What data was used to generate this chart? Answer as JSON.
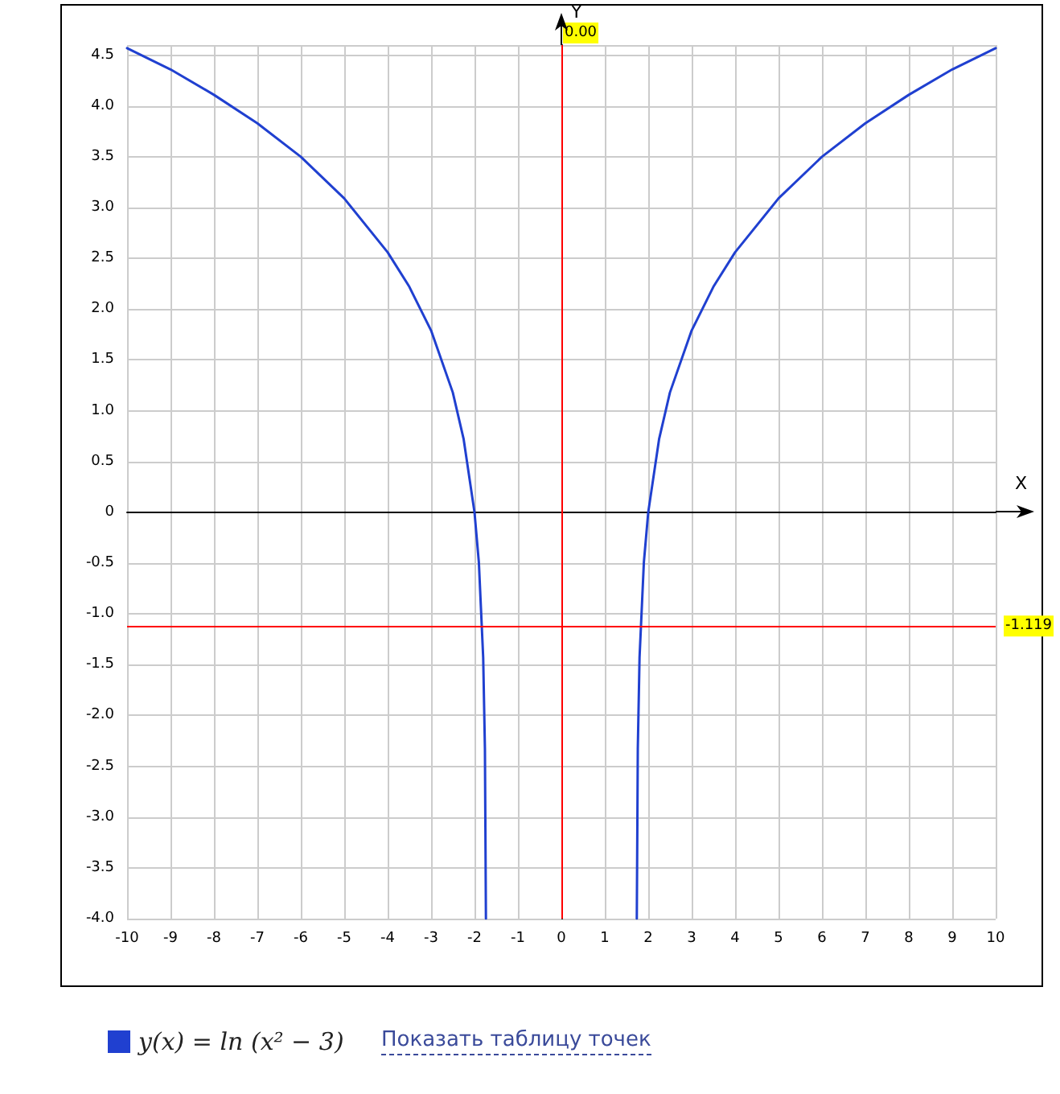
{
  "chart_data": {
    "type": "line",
    "xlabel": "X",
    "ylabel": "Y",
    "xlim": [
      -10,
      10
    ],
    "xticks": [
      -10,
      -9,
      -8,
      -7,
      -6,
      -5,
      -4,
      -3,
      -2,
      -1,
      0,
      1,
      2,
      3,
      4,
      5,
      6,
      7,
      8,
      9,
      10
    ],
    "ylim": [
      -4,
      4.6
    ],
    "yticks": [
      {
        "value": -4,
        "label": "-4.0"
      },
      -3.5,
      {
        "value": -3,
        "label": "-3.0"
      },
      -2.5,
      {
        "value": -2,
        "label": "-2.0"
      },
      -1.5,
      {
        "value": -1,
        "label": "-1.0"
      },
      -0.5,
      0,
      0.5,
      {
        "value": 1,
        "label": "1.0"
      },
      1.5,
      {
        "value": 2,
        "label": "2.0"
      },
      2.5,
      {
        "value": 3,
        "label": "3.0"
      },
      3.5,
      {
        "value": 4,
        "label": "4.0"
      },
      4.5
    ],
    "grid": true,
    "legend": "bottom left",
    "marker": "none",
    "series": [
      {
        "name": "y(x) = ln (x² − 3)",
        "color": "#2040d0",
        "x": [
          -10,
          -9,
          -8,
          -7,
          -6,
          -5,
          -4,
          -3.5,
          -3,
          -2.5,
          -2.25,
          -2,
          -1.9,
          -1.8,
          -1.76,
          -1.737,
          0,
          1.737,
          1.76,
          1.8,
          1.9,
          2,
          2.25,
          2.5,
          3,
          3.5,
          4,
          5,
          6,
          7,
          8,
          9,
          10
        ],
        "values": [
          4.57,
          4.36,
          4.11,
          3.83,
          3.5,
          3.09,
          2.56,
          2.22,
          1.79,
          1.18,
          0.72,
          0,
          -0.49,
          -1.43,
          -2.33,
          -4,
          null,
          -4,
          -2.33,
          -1.43,
          -0.49,
          0,
          0.72,
          1.18,
          1.79,
          2.22,
          2.56,
          3.09,
          3.5,
          3.83,
          4.11,
          4.36,
          4.57
        ]
      }
    ],
    "ref_lines": [
      {
        "axis": "x",
        "value": 0,
        "label": "0.00",
        "color": "#ff0000"
      },
      {
        "axis": "y",
        "value": -1.119,
        "label": "-1.119",
        "color": "#ff0000"
      }
    ],
    "annotations": [
      "Показать таблицу точек"
    ]
  }
}
